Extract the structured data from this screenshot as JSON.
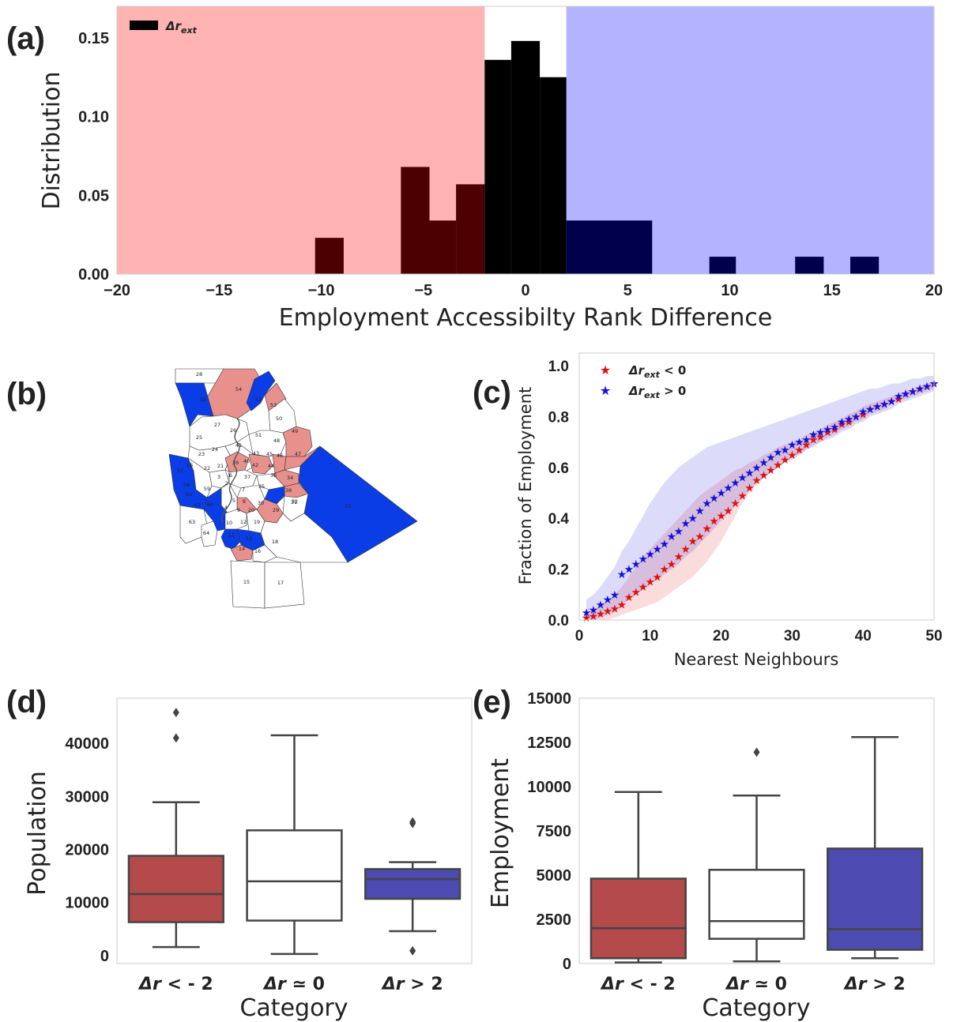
{
  "panels": {
    "a": {
      "letter": "(a)"
    },
    "b": {
      "letter": "(b)"
    },
    "c": {
      "letter": "(c)"
    },
    "d": {
      "letter": "(d)"
    },
    "e": {
      "letter": "(e)"
    }
  },
  "colors": {
    "negative_region": "#ffb3b3",
    "positive_region": "#b3b3ff",
    "neutral_bar": "#000000",
    "negative_bar": "#4d0000",
    "positive_bar": "#00004d",
    "red_series": "#dd1111",
    "blue_series": "#1111dd",
    "box_red": "#b54a4a",
    "box_white": "#ffffff",
    "box_blue": "#4b4bb2",
    "map_red": "#e8908c",
    "map_blue": "#0a3de6"
  },
  "chart_data": [
    {
      "id": "a",
      "type": "bar",
      "xlabel": "Employment Accessibilty Rank Difference",
      "ylabel": "Distribution",
      "xlim": [
        -20,
        20
      ],
      "ylim": [
        0,
        0.17
      ],
      "xticks": [
        -20,
        -15,
        -10,
        -5,
        0,
        5,
        10,
        15,
        20
      ],
      "xtick_labels": [
        "−20",
        "−15",
        "−10",
        "−5",
        "0",
        "5",
        "10",
        "15",
        "20"
      ],
      "yticks": [
        0.0,
        0.05,
        0.1,
        0.15
      ],
      "ytick_labels": [
        "0.00",
        "0.05",
        "0.10",
        "0.15"
      ],
      "legend": {
        "label_main": "Δr",
        "label_sub": "ext",
        "position": "upper-left"
      },
      "shaded_regions": [
        {
          "x0": -20,
          "x1": -2,
          "color": "negative_region"
        },
        {
          "x0": 2,
          "x1": 20,
          "color": "positive_region"
        }
      ],
      "bars": [
        {
          "x0": -10.3,
          "x1": -8.9,
          "value": 0.023
        },
        {
          "x0": -6.1,
          "x1": -4.7,
          "value": 0.068
        },
        {
          "x0": -4.7,
          "x1": -3.4,
          "value": 0.034
        },
        {
          "x0": -3.4,
          "x1": -2.0,
          "value": 0.057
        },
        {
          "x0": -2.0,
          "x1": -0.7,
          "value": 0.136
        },
        {
          "x0": -0.7,
          "x1": 0.7,
          "value": 0.148
        },
        {
          "x0": 0.7,
          "x1": 2.0,
          "value": 0.125
        },
        {
          "x0": 2.0,
          "x1": 6.2,
          "value": 0.034
        },
        {
          "x0": 9.0,
          "x1": 10.3,
          "value": 0.011
        },
        {
          "x0": 13.2,
          "x1": 14.6,
          "value": 0.011
        },
        {
          "x0": 15.9,
          "x1": 17.3,
          "value": 0.011
        }
      ]
    },
    {
      "id": "c",
      "type": "scatter",
      "xlabel": "Nearest Neighbours",
      "ylabel": "Fraction of Employment",
      "xlim": [
        0,
        50
      ],
      "ylim": [
        0,
        1.05
      ],
      "xticks": [
        0,
        10,
        20,
        30,
        40,
        50
      ],
      "yticks": [
        0.0,
        0.2,
        0.4,
        0.6,
        0.8,
        1.0
      ],
      "ytick_labels": [
        "0.0",
        "0.2",
        "0.4",
        "0.6",
        "0.8",
        "1.0"
      ],
      "legend_position": "upper-left",
      "series": [
        {
          "name_main": "Δr",
          "name_sub": "ext",
          "name_rest": " < 0",
          "color": "red_series",
          "x": [
            1,
            2,
            3,
            4,
            5,
            6,
            7,
            8,
            9,
            10,
            11,
            12,
            13,
            14,
            15,
            16,
            17,
            18,
            19,
            20,
            21,
            22,
            23,
            24,
            25,
            26,
            27,
            28,
            29,
            30,
            31,
            32,
            33,
            34,
            35,
            36,
            37,
            38,
            39,
            40,
            41,
            42,
            43,
            44,
            45,
            46,
            47,
            48,
            49,
            50
          ],
          "y": [
            0.01,
            0.015,
            0.025,
            0.035,
            0.045,
            0.06,
            0.09,
            0.11,
            0.13,
            0.15,
            0.17,
            0.2,
            0.22,
            0.25,
            0.28,
            0.31,
            0.33,
            0.36,
            0.39,
            0.41,
            0.43,
            0.46,
            0.49,
            0.52,
            0.55,
            0.57,
            0.59,
            0.61,
            0.63,
            0.65,
            0.67,
            0.69,
            0.71,
            0.72,
            0.74,
            0.75,
            0.77,
            0.78,
            0.8,
            0.81,
            0.83,
            0.84,
            0.85,
            0.86,
            0.87,
            0.89,
            0.9,
            0.91,
            0.92,
            0.93
          ],
          "band_lower": [
            0.0,
            0.0,
            0.0,
            0.0,
            0.01,
            0.02,
            0.03,
            0.04,
            0.05,
            0.06,
            0.07,
            0.09,
            0.11,
            0.13,
            0.15,
            0.17,
            0.2,
            0.23,
            0.27,
            0.31,
            0.36,
            0.41,
            0.46,
            0.5,
            0.53,
            0.56,
            0.58,
            0.6,
            0.62,
            0.63,
            0.65,
            0.67,
            0.69,
            0.7,
            0.72,
            0.73,
            0.75,
            0.76,
            0.78,
            0.79,
            0.81,
            0.82,
            0.83,
            0.85,
            0.86,
            0.87,
            0.88,
            0.89,
            0.9,
            0.91
          ],
          "band_upper": [
            0.03,
            0.04,
            0.06,
            0.08,
            0.1,
            0.13,
            0.17,
            0.21,
            0.25,
            0.28,
            0.31,
            0.34,
            0.37,
            0.4,
            0.43,
            0.46,
            0.49,
            0.51,
            0.53,
            0.55,
            0.57,
            0.59,
            0.6,
            0.62,
            0.63,
            0.65,
            0.66,
            0.68,
            0.69,
            0.7,
            0.71,
            0.73,
            0.74,
            0.75,
            0.77,
            0.78,
            0.79,
            0.81,
            0.82,
            0.84,
            0.85,
            0.86,
            0.87,
            0.88,
            0.89,
            0.9,
            0.91,
            0.92,
            0.93,
            0.94
          ]
        },
        {
          "name_main": "Δr",
          "name_sub": "ext",
          "name_rest": " > 0",
          "color": "blue_series",
          "x": [
            1,
            2,
            3,
            4,
            5,
            6,
            7,
            8,
            9,
            10,
            11,
            12,
            13,
            14,
            15,
            16,
            17,
            18,
            19,
            20,
            21,
            22,
            23,
            24,
            25,
            26,
            27,
            28,
            29,
            30,
            31,
            32,
            33,
            34,
            35,
            36,
            37,
            38,
            39,
            40,
            41,
            42,
            43,
            44,
            45,
            46,
            47,
            48,
            49,
            50
          ],
          "y": [
            0.03,
            0.04,
            0.06,
            0.08,
            0.1,
            0.18,
            0.2,
            0.22,
            0.24,
            0.26,
            0.28,
            0.3,
            0.33,
            0.35,
            0.38,
            0.4,
            0.43,
            0.46,
            0.48,
            0.5,
            0.52,
            0.54,
            0.56,
            0.58,
            0.6,
            0.62,
            0.64,
            0.66,
            0.67,
            0.69,
            0.7,
            0.71,
            0.73,
            0.74,
            0.75,
            0.76,
            0.78,
            0.79,
            0.8,
            0.82,
            0.83,
            0.84,
            0.85,
            0.86,
            0.88,
            0.89,
            0.9,
            0.91,
            0.92,
            0.93
          ],
          "band_lower": [
            0.0,
            0.0,
            0.01,
            0.02,
            0.03,
            0.06,
            0.08,
            0.1,
            0.12,
            0.14,
            0.16,
            0.18,
            0.2,
            0.22,
            0.25,
            0.27,
            0.3,
            0.33,
            0.36,
            0.39,
            0.42,
            0.45,
            0.48,
            0.51,
            0.54,
            0.56,
            0.58,
            0.6,
            0.62,
            0.64,
            0.65,
            0.67,
            0.68,
            0.7,
            0.71,
            0.72,
            0.74,
            0.75,
            0.77,
            0.78,
            0.8,
            0.81,
            0.82,
            0.83,
            0.85,
            0.86,
            0.87,
            0.88,
            0.89,
            0.9
          ],
          "band_upper": [
            0.08,
            0.1,
            0.13,
            0.17,
            0.21,
            0.27,
            0.31,
            0.36,
            0.41,
            0.46,
            0.5,
            0.54,
            0.57,
            0.6,
            0.62,
            0.64,
            0.66,
            0.68,
            0.69,
            0.7,
            0.71,
            0.72,
            0.73,
            0.74,
            0.75,
            0.76,
            0.77,
            0.78,
            0.79,
            0.8,
            0.81,
            0.82,
            0.83,
            0.84,
            0.85,
            0.86,
            0.87,
            0.88,
            0.89,
            0.9,
            0.91,
            0.91,
            0.92,
            0.93,
            0.93,
            0.94,
            0.95,
            0.95,
            0.96,
            0.96
          ]
        }
      ]
    },
    {
      "id": "d",
      "type": "box",
      "xlabel": "Category",
      "ylabel": "Population",
      "ylim": [
        -1500,
        48500
      ],
      "yticks": [
        0,
        10000,
        20000,
        30000,
        40000
      ],
      "ytick_labels": [
        "0",
        "10000",
        "20000",
        "30000",
        "40000"
      ],
      "boxes": [
        {
          "cat_main": "Δr",
          "cat_rest": " < - 2",
          "color": "box_red",
          "whislo": 1600,
          "q1": 6300,
          "med": 11600,
          "q3": 18800,
          "whishi": 28900,
          "fliers": [
            41000,
            45800
          ]
        },
        {
          "cat_main": "Δr",
          "cat_rest": " ≃ 0",
          "color": "box_white",
          "whislo": 300,
          "q1": 6600,
          "med": 14000,
          "q3": 23600,
          "whishi": 41500,
          "fliers": []
        },
        {
          "cat_main": "Δr",
          "cat_rest": " > 2",
          "color": "box_blue",
          "whislo": 4600,
          "q1": 10700,
          "med": 14400,
          "q3": 16300,
          "whishi": 17600,
          "fliers": [
            900,
            24900,
            25200
          ]
        }
      ]
    },
    {
      "id": "e",
      "type": "box",
      "xlabel": "Category",
      "ylabel": "Employment",
      "ylim": [
        0,
        15000
      ],
      "yticks": [
        0,
        2500,
        5000,
        7500,
        10000,
        12500,
        15000
      ],
      "ytick_labels": [
        "0",
        "2500",
        "5000",
        "7500",
        "10000",
        "12500",
        "15000"
      ],
      "boxes": [
        {
          "cat_main": "Δr",
          "cat_rest": " < - 2",
          "color": "box_red",
          "whislo": 60,
          "q1": 300,
          "med": 2000,
          "q3": 4800,
          "whishi": 9700,
          "fliers": []
        },
        {
          "cat_main": "Δr",
          "cat_rest": " ≃ 0",
          "color": "box_white",
          "whislo": 120,
          "q1": 1400,
          "med": 2400,
          "q3": 5300,
          "whishi": 9500,
          "fliers": [
            11950
          ]
        },
        {
          "cat_main": "Δr",
          "cat_rest": " > 2",
          "color": "box_blue",
          "whislo": 300,
          "q1": 780,
          "med": 1950,
          "q3": 6500,
          "whishi": 12800,
          "fliers": []
        }
      ]
    }
  ],
  "map": {
    "zone_labels": [
      "28",
      "54",
      "55",
      "52",
      "53",
      "50",
      "27",
      "26",
      "25",
      "51",
      "48",
      "49",
      "24",
      "41",
      "23",
      "40",
      "45",
      "46",
      "47",
      "57",
      "56",
      "22",
      "21",
      "39",
      "42",
      "44",
      "43",
      "35",
      "36",
      "34",
      "33",
      "58",
      "59",
      "61",
      "2",
      "37",
      "62",
      "60",
      "38",
      "8",
      "30",
      "31",
      "7",
      "29",
      "32",
      "63",
      "9",
      "20",
      "3",
      "10",
      "12",
      "19",
      "64",
      "11",
      "13",
      "18",
      "14",
      "16",
      "15",
      "17",
      "4",
      "5",
      "6",
      "1"
    ]
  }
}
